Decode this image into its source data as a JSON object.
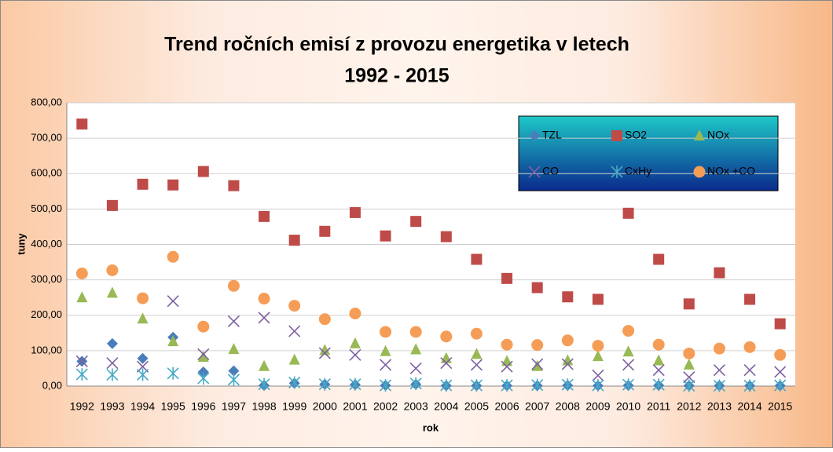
{
  "chart_data": {
    "type": "scatter",
    "title": "Trend ročních emisí z provozu energetika v letech",
    "subtitle": "1992 - 2015",
    "x_label": "rok",
    "y_label": "tuny",
    "categories": [
      "1992",
      "1993",
      "1994",
      "1995",
      "1996",
      "1997",
      "1998",
      "1999",
      "2000",
      "2001",
      "2002",
      "2003",
      "2004",
      "2005",
      "2006",
      "2007",
      "2008",
      "2009",
      "2010",
      "2011",
      "2012",
      "2013",
      "2014",
      "2015"
    ],
    "ylim": [
      0,
      800
    ],
    "yticks": [
      {
        "value": 0,
        "label": "0,00"
      },
      {
        "value": 100,
        "label": "100,00"
      },
      {
        "value": 200,
        "label": "200,00"
      },
      {
        "value": 300,
        "label": "300,00"
      },
      {
        "value": 400,
        "label": "400,00"
      },
      {
        "value": 500,
        "label": "500,00"
      },
      {
        "value": 600,
        "label": "600,00"
      },
      {
        "value": 700,
        "label": "700,00"
      },
      {
        "value": 800,
        "label": "800,00"
      }
    ],
    "grid": true,
    "legend": "upper right",
    "series": [
      {
        "name": "TZL",
        "color": "#4a7ebb",
        "marker": "diamond",
        "values": [
          70,
          120,
          78,
          138,
          40,
          43,
          2,
          8,
          5,
          4,
          2,
          5,
          1,
          1,
          1,
          1,
          2,
          1,
          2,
          2,
          1,
          1,
          1,
          1
        ]
      },
      {
        "name": "SO2",
        "color": "#be4b48",
        "marker": "square",
        "values": [
          740,
          510,
          570,
          568,
          606,
          566,
          479,
          412,
          437,
          490,
          424,
          465,
          422,
          358,
          304,
          278,
          252,
          245,
          488,
          358,
          232,
          320,
          245,
          176
        ]
      },
      {
        "name": "NOx",
        "color": "#98b954",
        "marker": "triangle",
        "values": [
          250,
          263,
          190,
          126,
          82,
          104,
          56,
          74,
          101,
          120,
          98,
          103,
          78,
          90,
          70,
          56,
          72,
          84,
          97,
          72,
          60,
          null,
          null,
          null
        ]
      },
      {
        "name": "CO",
        "color": "#7d60a0",
        "marker": "x",
        "values": [
          70,
          65,
          55,
          240,
          90,
          183,
          193,
          155,
          93,
          88,
          60,
          50,
          65,
          60,
          55,
          62,
          62,
          30,
          60,
          45,
          25,
          45,
          45,
          40
        ]
      },
      {
        "name": "CxHy",
        "color": "#46aac5",
        "marker": "star",
        "values": [
          33,
          32,
          32,
          36,
          22,
          18,
          5,
          10,
          5,
          5,
          2,
          7,
          2,
          2,
          2,
          3,
          4,
          2,
          4,
          4,
          1,
          1,
          1,
          2
        ]
      },
      {
        "name": "NOx +CO",
        "color": "#f59d56",
        "marker": "circle",
        "values": [
          318,
          327,
          248,
          365,
          168,
          283,
          247,
          227,
          189,
          205,
          153,
          153,
          140,
          148,
          117,
          116,
          129,
          114,
          156,
          117,
          92,
          106,
          110,
          88
        ]
      }
    ]
  }
}
